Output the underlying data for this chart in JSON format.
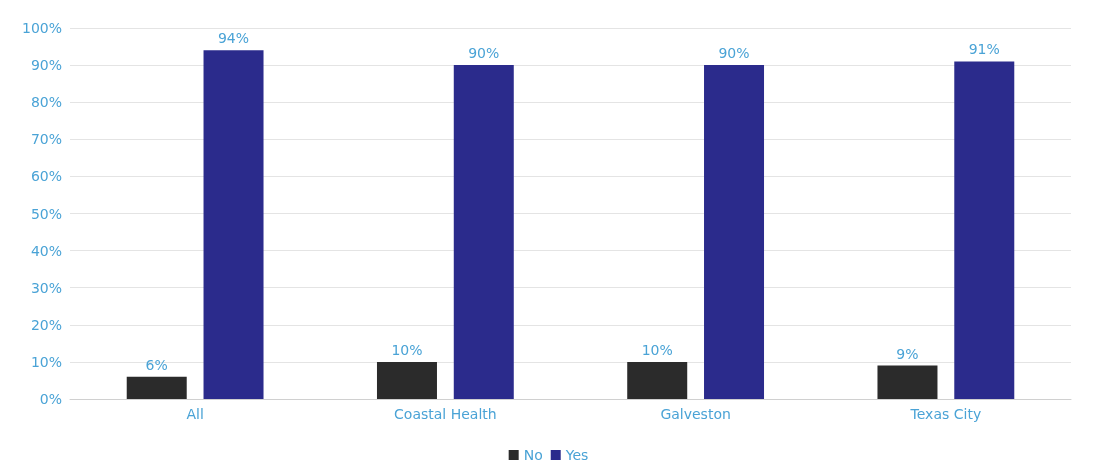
{
  "chart_data": {
    "type": "bar",
    "categories": [
      "All",
      "Coastal Health",
      "Galveston",
      "Texas City"
    ],
    "series": [
      {
        "name": "No",
        "color": "#2b2b2b",
        "values": [
          6,
          10,
          10,
          9
        ],
        "value_labels": [
          "6%",
          "10%",
          "10%",
          "9%"
        ]
      },
      {
        "name": "Yes",
        "color": "#2b2b8c",
        "values": [
          94,
          90,
          90,
          91
        ],
        "value_labels": [
          "94%",
          "90%",
          "90%",
          "91%"
        ]
      }
    ],
    "ylim": [
      0,
      100
    ],
    "yticks": [
      {
        "value": 0,
        "label": "0%"
      },
      {
        "value": 10,
        "label": "10%"
      },
      {
        "value": 20,
        "label": "20%"
      },
      {
        "value": 30,
        "label": "30%"
      },
      {
        "value": 40,
        "label": "40%"
      },
      {
        "value": 50,
        "label": "50%"
      },
      {
        "value": 60,
        "label": "60%"
      },
      {
        "value": 70,
        "label": "70%"
      },
      {
        "value": 80,
        "label": "80%"
      },
      {
        "value": 90,
        "label": "90%"
      },
      {
        "value": 100,
        "label": "100%"
      }
    ],
    "grid": "y",
    "legend": "bottom"
  }
}
